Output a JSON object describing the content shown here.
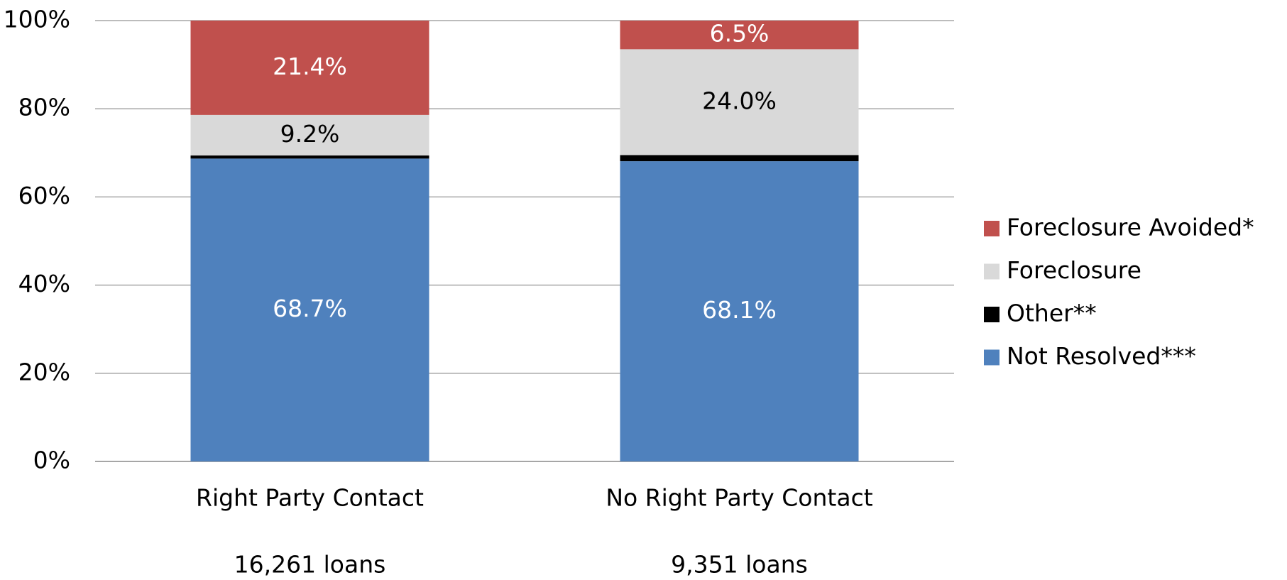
{
  "chart_data": {
    "type": "stacked_bar",
    "categories": [
      "Right Party Contact",
      "No Right Party Contact"
    ],
    "category_notes": [
      "16,261 loans",
      "9,351 loans"
    ],
    "series": [
      {
        "name": "Not Resolved***",
        "color": "#4f81bd",
        "label_color": "#ffffff",
        "values": [
          68.7,
          68.1
        ],
        "value_labels": [
          "68.7%",
          "68.1%"
        ]
      },
      {
        "name": "Other**",
        "color": "#000000",
        "values": [
          0.7,
          1.4
        ]
      },
      {
        "name": "Foreclosure",
        "color": "#d9d9d9",
        "label_color": "#000000",
        "values": [
          9.2,
          24.0
        ],
        "value_labels": [
          "9.2%",
          "24.0%"
        ]
      },
      {
        "name": "Foreclosure Avoided*",
        "color": "#c0504d",
        "label_color": "#ffffff",
        "values": [
          21.4,
          6.5
        ],
        "value_labels": [
          "21.4%",
          "6.5%"
        ]
      }
    ],
    "ylim": [
      0,
      100
    ],
    "yticks": [
      {
        "value": 0,
        "label": "0%"
      },
      {
        "value": 20,
        "label": "20%"
      },
      {
        "value": 40,
        "label": "40%"
      },
      {
        "value": 60,
        "label": "60%"
      },
      {
        "value": 80,
        "label": "80%"
      },
      {
        "value": 100,
        "label": "100%"
      }
    ],
    "grid": true,
    "legend": "right"
  }
}
